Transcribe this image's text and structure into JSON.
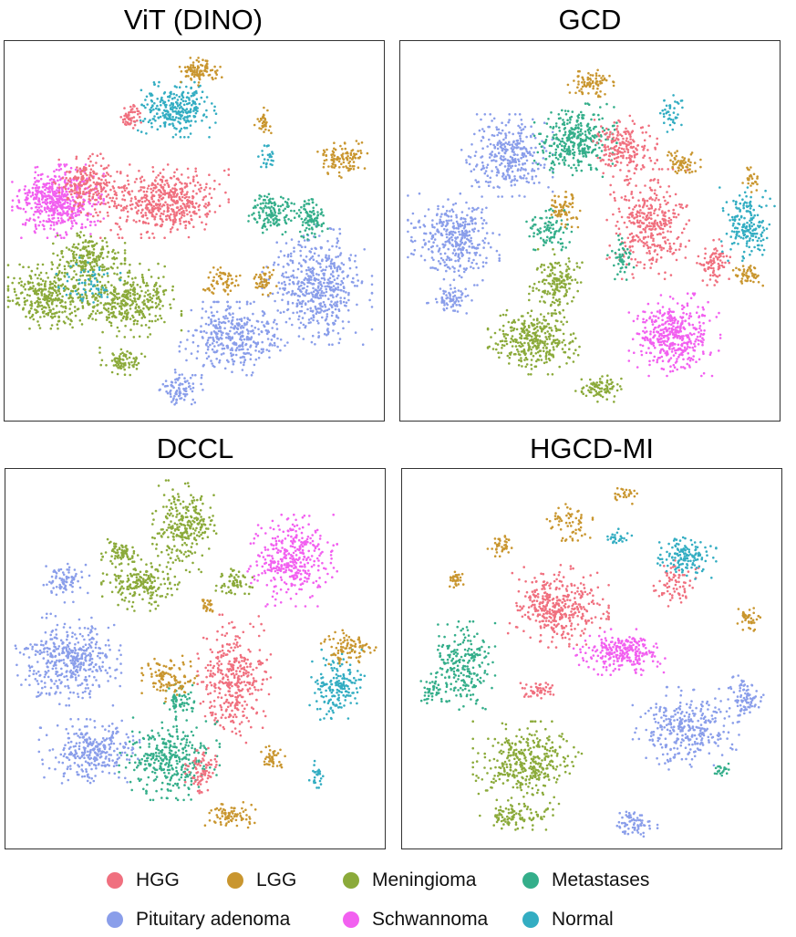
{
  "chart_data": [
    {
      "type": "scatter",
      "title": "ViT (DINO)",
      "clusters": [
        {
          "label": "Schwannoma",
          "cx": 0.14,
          "cy": 0.42,
          "rx": 0.1,
          "ry": 0.08,
          "n": 520
        },
        {
          "label": "HGG",
          "cx": 0.42,
          "cy": 0.42,
          "rx": 0.14,
          "ry": 0.08,
          "n": 500
        },
        {
          "label": "HGG",
          "cx": 0.22,
          "cy": 0.38,
          "rx": 0.08,
          "ry": 0.07,
          "n": 220
        },
        {
          "label": "Meningioma",
          "cx": 0.12,
          "cy": 0.67,
          "rx": 0.1,
          "ry": 0.07,
          "n": 330
        },
        {
          "label": "Meningioma",
          "cx": 0.32,
          "cy": 0.68,
          "rx": 0.12,
          "ry": 0.08,
          "n": 380
        },
        {
          "label": "Meningioma",
          "cx": 0.22,
          "cy": 0.57,
          "rx": 0.08,
          "ry": 0.06,
          "n": 200
        },
        {
          "label": "Meningioma",
          "cx": 0.31,
          "cy": 0.84,
          "rx": 0.05,
          "ry": 0.03,
          "n": 80
        },
        {
          "label": "Pituitary adenoma",
          "cx": 0.82,
          "cy": 0.64,
          "rx": 0.12,
          "ry": 0.13,
          "n": 500
        },
        {
          "label": "Pituitary adenoma",
          "cx": 0.6,
          "cy": 0.78,
          "rx": 0.12,
          "ry": 0.08,
          "n": 360
        },
        {
          "label": "Pituitary adenoma",
          "cx": 0.46,
          "cy": 0.91,
          "rx": 0.05,
          "ry": 0.04,
          "n": 90
        },
        {
          "label": "Normal",
          "cx": 0.45,
          "cy": 0.18,
          "rx": 0.09,
          "ry": 0.06,
          "n": 280
        },
        {
          "label": "Metastases",
          "cx": 0.7,
          "cy": 0.45,
          "rx": 0.05,
          "ry": 0.05,
          "n": 130
        },
        {
          "label": "Metastases",
          "cx": 0.8,
          "cy": 0.46,
          "rx": 0.04,
          "ry": 0.05,
          "n": 100
        },
        {
          "label": "LGG",
          "cx": 0.51,
          "cy": 0.08,
          "rx": 0.05,
          "ry": 0.03,
          "n": 100
        },
        {
          "label": "LGG",
          "cx": 0.88,
          "cy": 0.31,
          "rx": 0.06,
          "ry": 0.04,
          "n": 110
        },
        {
          "label": "LGG",
          "cx": 0.57,
          "cy": 0.63,
          "rx": 0.04,
          "ry": 0.03,
          "n": 60
        },
        {
          "label": "LGG",
          "cx": 0.68,
          "cy": 0.63,
          "rx": 0.03,
          "ry": 0.03,
          "n": 45
        },
        {
          "label": "LGG",
          "cx": 0.68,
          "cy": 0.21,
          "rx": 0.02,
          "ry": 0.03,
          "n": 35
        },
        {
          "label": "Normal",
          "cx": 0.22,
          "cy": 0.64,
          "rx": 0.07,
          "ry": 0.06,
          "n": 60
        },
        {
          "label": "Normal",
          "cx": 0.69,
          "cy": 0.31,
          "rx": 0.02,
          "ry": 0.03,
          "n": 25
        },
        {
          "label": "HGG",
          "cx": 0.33,
          "cy": 0.2,
          "rx": 0.03,
          "ry": 0.03,
          "n": 60
        }
      ]
    },
    {
      "type": "scatter",
      "title": "GCD",
      "clusters": [
        {
          "label": "Pituitary adenoma",
          "cx": 0.14,
          "cy": 0.52,
          "rx": 0.1,
          "ry": 0.1,
          "n": 360
        },
        {
          "label": "Pituitary adenoma",
          "cx": 0.28,
          "cy": 0.3,
          "rx": 0.1,
          "ry": 0.09,
          "n": 320
        },
        {
          "label": "Pituitary adenoma",
          "cx": 0.13,
          "cy": 0.68,
          "rx": 0.05,
          "ry": 0.03,
          "n": 70
        },
        {
          "label": "Schwannoma",
          "cx": 0.72,
          "cy": 0.77,
          "rx": 0.1,
          "ry": 0.09,
          "n": 420
        },
        {
          "label": "HGG",
          "cx": 0.65,
          "cy": 0.48,
          "rx": 0.09,
          "ry": 0.12,
          "n": 350
        },
        {
          "label": "HGG",
          "cx": 0.82,
          "cy": 0.58,
          "rx": 0.04,
          "ry": 0.05,
          "n": 90
        },
        {
          "label": "Meningioma",
          "cx": 0.35,
          "cy": 0.79,
          "rx": 0.1,
          "ry": 0.07,
          "n": 340
        },
        {
          "label": "Meningioma",
          "cx": 0.41,
          "cy": 0.63,
          "rx": 0.06,
          "ry": 0.07,
          "n": 160
        },
        {
          "label": "Meningioma",
          "cx": 0.52,
          "cy": 0.91,
          "rx": 0.05,
          "ry": 0.03,
          "n": 80
        },
        {
          "label": "Metastases",
          "cx": 0.46,
          "cy": 0.26,
          "rx": 0.09,
          "ry": 0.08,
          "n": 340
        },
        {
          "label": "Normal",
          "cx": 0.91,
          "cy": 0.48,
          "rx": 0.06,
          "ry": 0.08,
          "n": 180
        },
        {
          "label": "Normal",
          "cx": 0.71,
          "cy": 0.19,
          "rx": 0.03,
          "ry": 0.04,
          "n": 40
        },
        {
          "label": "HGG",
          "cx": 0.59,
          "cy": 0.28,
          "rx": 0.07,
          "ry": 0.07,
          "n": 200
        },
        {
          "label": "LGG",
          "cx": 0.5,
          "cy": 0.11,
          "rx": 0.05,
          "ry": 0.03,
          "n": 80
        },
        {
          "label": "LGG",
          "cx": 0.43,
          "cy": 0.44,
          "rx": 0.04,
          "ry": 0.04,
          "n": 70
        },
        {
          "label": "LGG",
          "cx": 0.74,
          "cy": 0.32,
          "rx": 0.04,
          "ry": 0.03,
          "n": 60
        },
        {
          "label": "LGG",
          "cx": 0.91,
          "cy": 0.61,
          "rx": 0.04,
          "ry": 0.03,
          "n": 50
        },
        {
          "label": "LGG",
          "cx": 0.92,
          "cy": 0.36,
          "rx": 0.02,
          "ry": 0.03,
          "n": 25
        },
        {
          "label": "Metastases",
          "cx": 0.39,
          "cy": 0.5,
          "rx": 0.05,
          "ry": 0.05,
          "n": 90
        },
        {
          "label": "Metastases",
          "cx": 0.58,
          "cy": 0.57,
          "rx": 0.03,
          "ry": 0.05,
          "n": 50
        }
      ]
    },
    {
      "type": "scatter",
      "title": "DCCL",
      "clusters": [
        {
          "label": "Pituitary adenoma",
          "cx": 0.17,
          "cy": 0.5,
          "rx": 0.12,
          "ry": 0.1,
          "n": 420
        },
        {
          "label": "Pituitary adenoma",
          "cx": 0.22,
          "cy": 0.74,
          "rx": 0.11,
          "ry": 0.07,
          "n": 300
        },
        {
          "label": "Pituitary adenoma",
          "cx": 0.16,
          "cy": 0.29,
          "rx": 0.05,
          "ry": 0.05,
          "n": 80
        },
        {
          "label": "Schwannoma",
          "cx": 0.75,
          "cy": 0.24,
          "rx": 0.1,
          "ry": 0.1,
          "n": 360
        },
        {
          "label": "HGG",
          "cx": 0.6,
          "cy": 0.55,
          "rx": 0.08,
          "ry": 0.14,
          "n": 360
        },
        {
          "label": "Meningioma",
          "cx": 0.47,
          "cy": 0.15,
          "rx": 0.07,
          "ry": 0.1,
          "n": 260
        },
        {
          "label": "Meningioma",
          "cx": 0.36,
          "cy": 0.3,
          "rx": 0.09,
          "ry": 0.06,
          "n": 200
        },
        {
          "label": "Meningioma",
          "cx": 0.3,
          "cy": 0.22,
          "rx": 0.04,
          "ry": 0.03,
          "n": 70
        },
        {
          "label": "Metastases",
          "cx": 0.43,
          "cy": 0.76,
          "rx": 0.11,
          "ry": 0.09,
          "n": 330
        },
        {
          "label": "Metastases",
          "cx": 0.46,
          "cy": 0.61,
          "rx": 0.04,
          "ry": 0.04,
          "n": 60
        },
        {
          "label": "Normal",
          "cx": 0.87,
          "cy": 0.57,
          "rx": 0.06,
          "ry": 0.08,
          "n": 180
        },
        {
          "label": "Normal",
          "cx": 0.82,
          "cy": 0.8,
          "rx": 0.02,
          "ry": 0.03,
          "n": 25
        },
        {
          "label": "LGG",
          "cx": 0.43,
          "cy": 0.55,
          "rx": 0.06,
          "ry": 0.05,
          "n": 110
        },
        {
          "label": "LGG",
          "cx": 0.59,
          "cy": 0.91,
          "rx": 0.06,
          "ry": 0.03,
          "n": 80
        },
        {
          "label": "LGG",
          "cx": 0.9,
          "cy": 0.47,
          "rx": 0.06,
          "ry": 0.04,
          "n": 90
        },
        {
          "label": "LGG",
          "cx": 0.7,
          "cy": 0.76,
          "rx": 0.03,
          "ry": 0.03,
          "n": 40
        },
        {
          "label": "LGG",
          "cx": 0.53,
          "cy": 0.36,
          "rx": 0.02,
          "ry": 0.02,
          "n": 25
        },
        {
          "label": "HGG",
          "cx": 0.52,
          "cy": 0.79,
          "rx": 0.04,
          "ry": 0.05,
          "n": 80
        },
        {
          "label": "Meningioma",
          "cx": 0.6,
          "cy": 0.3,
          "rx": 0.04,
          "ry": 0.04,
          "n": 60
        }
      ]
    },
    {
      "type": "scatter",
      "title": "HGCD-MI",
      "clusters": [
        {
          "label": "HGG",
          "cx": 0.41,
          "cy": 0.36,
          "rx": 0.11,
          "ry": 0.09,
          "n": 380
        },
        {
          "label": "HGG",
          "cx": 0.72,
          "cy": 0.3,
          "rx": 0.05,
          "ry": 0.05,
          "n": 70
        },
        {
          "label": "HGG",
          "cx": 0.35,
          "cy": 0.58,
          "rx": 0.04,
          "ry": 0.02,
          "n": 50
        },
        {
          "label": "Schwannoma",
          "cx": 0.57,
          "cy": 0.48,
          "rx": 0.1,
          "ry": 0.05,
          "n": 260
        },
        {
          "label": "Pituitary adenoma",
          "cx": 0.74,
          "cy": 0.68,
          "rx": 0.12,
          "ry": 0.09,
          "n": 320
        },
        {
          "label": "Pituitary adenoma",
          "cx": 0.9,
          "cy": 0.6,
          "rx": 0.04,
          "ry": 0.05,
          "n": 90
        },
        {
          "label": "Pituitary adenoma",
          "cx": 0.61,
          "cy": 0.93,
          "rx": 0.05,
          "ry": 0.03,
          "n": 70
        },
        {
          "label": "Meningioma",
          "cx": 0.33,
          "cy": 0.77,
          "rx": 0.12,
          "ry": 0.09,
          "n": 360
        },
        {
          "label": "Meningioma",
          "cx": 0.3,
          "cy": 0.91,
          "rx": 0.08,
          "ry": 0.03,
          "n": 100
        },
        {
          "label": "Metastases",
          "cx": 0.16,
          "cy": 0.52,
          "rx": 0.07,
          "ry": 0.1,
          "n": 230
        },
        {
          "label": "Metastases",
          "cx": 0.08,
          "cy": 0.58,
          "rx": 0.03,
          "ry": 0.03,
          "n": 40
        },
        {
          "label": "Normal",
          "cx": 0.74,
          "cy": 0.23,
          "rx": 0.07,
          "ry": 0.05,
          "n": 140
        },
        {
          "label": "LGG",
          "cx": 0.26,
          "cy": 0.2,
          "rx": 0.03,
          "ry": 0.03,
          "n": 40
        },
        {
          "label": "LGG",
          "cx": 0.14,
          "cy": 0.29,
          "rx": 0.02,
          "ry": 0.02,
          "n": 30
        },
        {
          "label": "LGG",
          "cx": 0.44,
          "cy": 0.14,
          "rx": 0.05,
          "ry": 0.04,
          "n": 60
        },
        {
          "label": "LGG",
          "cx": 0.59,
          "cy": 0.07,
          "rx": 0.03,
          "ry": 0.02,
          "n": 25
        },
        {
          "label": "LGG",
          "cx": 0.91,
          "cy": 0.39,
          "rx": 0.03,
          "ry": 0.03,
          "n": 40
        },
        {
          "label": "Normal",
          "cx": 0.57,
          "cy": 0.18,
          "rx": 0.03,
          "ry": 0.02,
          "n": 25
        },
        {
          "label": "Metastases",
          "cx": 0.84,
          "cy": 0.79,
          "rx": 0.02,
          "ry": 0.02,
          "n": 20
        }
      ]
    }
  ],
  "legend": [
    {
      "label": "HGG",
      "color": "#F0707F"
    },
    {
      "label": "LGG",
      "color": "#C9962F"
    },
    {
      "label": "Meningioma",
      "color": "#8BAA3A"
    },
    {
      "label": "Metastases",
      "color": "#34AE8A"
    },
    {
      "label": "Pituitary adenoma",
      "color": "#8A9EEA"
    },
    {
      "label": "Schwannoma",
      "color": "#F260F0"
    },
    {
      "label": "Normal",
      "color": "#33ADC2"
    }
  ]
}
